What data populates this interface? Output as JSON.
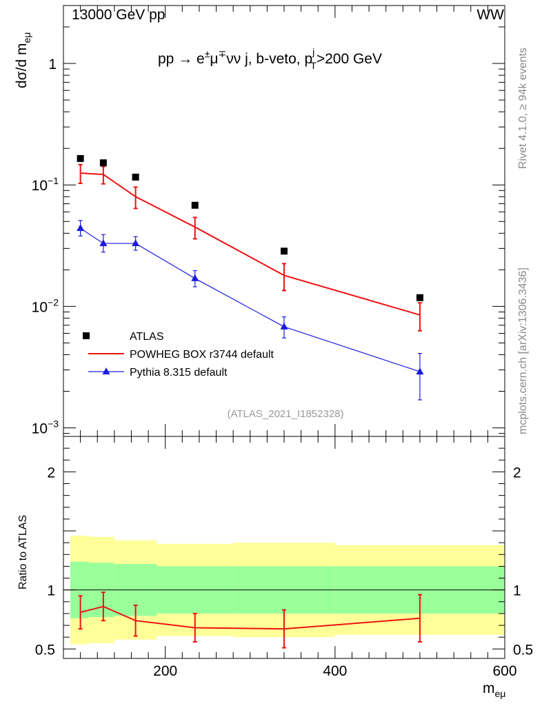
{
  "header": {
    "left": "13000 GeV pp",
    "right": "WW"
  },
  "side_text": {
    "upper": "Rivet 4.1.0, ≥ 94k events",
    "lower": "mcplots.cern.ch [arXiv:1306.3436]"
  },
  "chart_data": {
    "type": "line",
    "title": "pp → e±μ∓νν j, b-veto, p_T^j>200 GeV",
    "title_parts": {
      "main": "pp  →  e",
      "pm": "±",
      "mu": "μ",
      "mp": "∓",
      "rest": "νν j, b-veto, p",
      "sup_j": "j",
      "sub_T": "T",
      "tail": ">200 GeV"
    },
    "analysis_id": "(ATLAS_2021_I1852328)",
    "ylabel": {
      "text": "dσ/d m",
      "sub": "eμ"
    },
    "xlabel": {
      "text": "m",
      "sub": "eμ"
    },
    "ratio_ylabel": "Ratio to ATLAS",
    "xlim": [
      80,
      600
    ],
    "ylim": [
      0.00085,
      3
    ],
    "ratio_ylim": [
      0.42,
      2.3
    ],
    "y_ticks": [
      {
        "value": 0.001,
        "label_base": "10",
        "label_exp": "−3"
      },
      {
        "value": 0.01,
        "label_base": "10",
        "label_exp": "−2"
      },
      {
        "value": 0.1,
        "label_base": "10",
        "label_exp": "−1"
      },
      {
        "value": 1,
        "label_base": "1",
        "label_exp": ""
      }
    ],
    "x_ticks": [
      {
        "value": 200,
        "label": "200"
      },
      {
        "value": 400,
        "label": "400"
      },
      {
        "value": 600,
        "label": "600"
      }
    ],
    "ratio_ticks": [
      {
        "value": 0.5,
        "label": "0.5"
      },
      {
        "value": 1,
        "label": "1"
      },
      {
        "value": 2,
        "label": "2"
      }
    ],
    "legend": [
      {
        "key": "atlas",
        "label": "ATLAS",
        "color": "#000000",
        "marker": "square"
      },
      {
        "key": "powheg",
        "label": "POWHEG BOX r3744 default",
        "color": "#ee1111",
        "marker": "none"
      },
      {
        "key": "pythia",
        "label": "Pythia 8.315 default",
        "color": "#1a1ae0",
        "marker": "triangle"
      }
    ],
    "bins": [
      [
        80,
        110
      ],
      [
        110,
        140
      ],
      [
        140,
        190
      ],
      [
        190,
        280
      ],
      [
        280,
        400
      ],
      [
        400,
        600
      ]
    ],
    "data": {
      "name": "ATLAS",
      "x": [
        100,
        127,
        165,
        235,
        340,
        500
      ],
      "y": [
        0.165,
        0.152,
        0.116,
        0.068,
        0.0285,
        0.0118
      ],
      "ratio_band_inner": [
        0.24,
        0.23,
        0.22,
        0.2,
        0.2,
        0.2
      ],
      "ratio_band_outer": [
        0.46,
        0.45,
        0.42,
        0.39,
        0.4,
        0.38
      ]
    },
    "series": [
      {
        "name": "POWHEG BOX r3744 default",
        "color": "#ee1111",
        "x": [
          100,
          127,
          165,
          235,
          340,
          500
        ],
        "y": [
          0.125,
          0.122,
          0.08,
          0.045,
          0.018,
          0.0085
        ],
        "yerr_lo": [
          0.022,
          0.02,
          0.016,
          0.009,
          0.0045,
          0.0022
        ],
        "yerr_hi": [
          0.022,
          0.02,
          0.016,
          0.009,
          0.0045,
          0.0022
        ],
        "ratio": [
          0.81,
          0.86,
          0.74,
          0.68,
          0.67,
          0.76
        ],
        "ratio_err": [
          0.14,
          0.12,
          0.13,
          0.12,
          0.16,
          0.2
        ]
      },
      {
        "name": "Pythia 8.315 default",
        "color": "#1a1ae0",
        "x": [
          100,
          127,
          165,
          235,
          340,
          500
        ],
        "y": [
          0.044,
          0.033,
          0.033,
          0.017,
          0.0068,
          0.0029
        ],
        "yerr_lo": [
          0.006,
          0.005,
          0.004,
          0.0025,
          0.0013,
          0.0012
        ],
        "yerr_hi": [
          0.007,
          0.006,
          0.0045,
          0.0027,
          0.0014,
          0.0012
        ]
      }
    ]
  }
}
